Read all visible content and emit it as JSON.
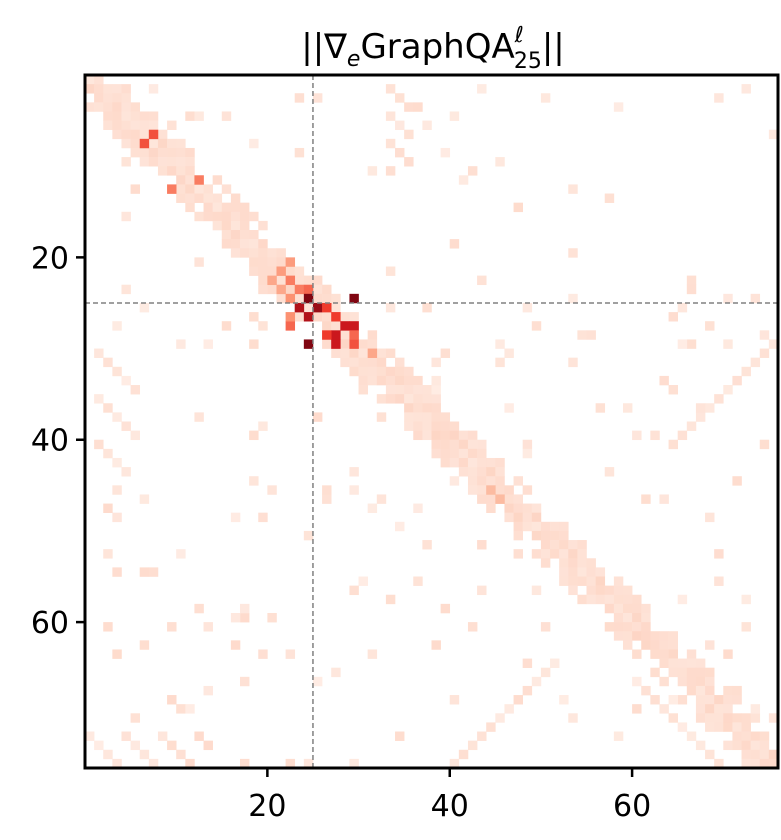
{
  "chart_data": {
    "type": "heatmap",
    "title": "||∇",
    "title_parts": {
      "open": "||∇",
      "sub_e": "e",
      "name": "GraphQA",
      "sup": "ℓ",
      "sub_num": "25",
      "close": "||"
    },
    "colormap": "Reds",
    "n": 76,
    "xlim": [
      0,
      76
    ],
    "ylim": [
      76,
      0
    ],
    "xticks": [
      20,
      40,
      60
    ],
    "yticks": [
      20,
      40,
      60
    ],
    "xtick_labels": [
      "20",
      "40",
      "60"
    ],
    "ytick_labels": [
      "20",
      "40",
      "60"
    ],
    "crosshair": {
      "x": 25,
      "y": 25,
      "color": "#808080",
      "style": "dashed"
    },
    "hot_cells": [
      {
        "row": 6,
        "col": 7,
        "value": 0.55
      },
      {
        "row": 7,
        "col": 6,
        "value": 0.55
      },
      {
        "row": 11,
        "col": 12,
        "value": 0.45
      },
      {
        "row": 12,
        "col": 9,
        "value": 0.45
      },
      {
        "row": 20,
        "col": 22,
        "value": 0.35
      },
      {
        "row": 21,
        "col": 21,
        "value": 0.35
      },
      {
        "row": 22,
        "col": 22,
        "value": 0.45
      },
      {
        "row": 23,
        "col": 23,
        "value": 0.45
      },
      {
        "row": 23,
        "col": 24,
        "value": 0.5
      },
      {
        "row": 24,
        "col": 24,
        "value": 0.95
      },
      {
        "row": 24,
        "col": 29,
        "value": 0.95
      },
      {
        "row": 25,
        "col": 23,
        "value": 0.85
      },
      {
        "row": 25,
        "col": 25,
        "value": 0.9
      },
      {
        "row": 25,
        "col": 26,
        "value": 0.6
      },
      {
        "row": 26,
        "col": 24,
        "value": 0.85
      },
      {
        "row": 26,
        "col": 27,
        "value": 0.6
      },
      {
        "row": 27,
        "col": 22,
        "value": 0.5
      },
      {
        "row": 27,
        "col": 28,
        "value": 0.8
      },
      {
        "row": 27,
        "col": 29,
        "value": 0.8
      },
      {
        "row": 28,
        "col": 27,
        "value": 0.8
      },
      {
        "row": 28,
        "col": 26,
        "value": 0.6
      },
      {
        "row": 29,
        "col": 24,
        "value": 0.95
      },
      {
        "row": 29,
        "col": 27,
        "value": 0.8
      },
      {
        "row": 29,
        "col": 29,
        "value": 0.55
      },
      {
        "row": 28,
        "col": 29,
        "value": 0.5
      },
      {
        "row": 30,
        "col": 31,
        "value": 0.3
      },
      {
        "row": 26,
        "col": 22,
        "value": 0.4
      },
      {
        "row": 24,
        "col": 22,
        "value": 0.4
      },
      {
        "row": 22,
        "col": 20,
        "value": 0.3
      },
      {
        "row": 45,
        "col": 44,
        "value": 0.2
      },
      {
        "row": 46,
        "col": 45,
        "value": 0.2
      },
      {
        "row": 23,
        "col": 21,
        "value": 0.3
      }
    ]
  }
}
